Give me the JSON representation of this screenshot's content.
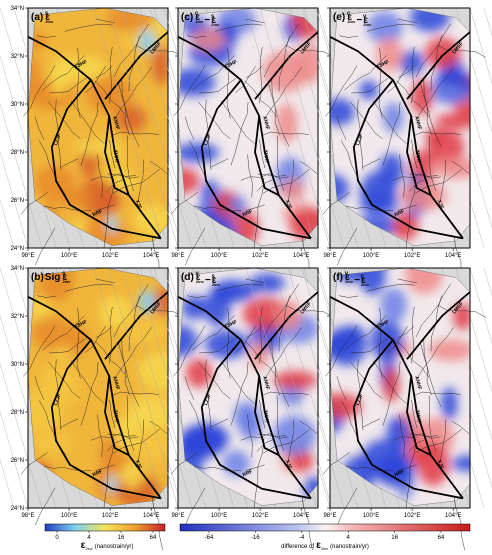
{
  "panels": [
    {
      "label": "(a)",
      "terms": [
        {
          "symbol": "ε",
          "sup": "s",
          "sub": "2inv"
        }
      ]
    },
    {
      "label": "(b)",
      "prefix": "Sig",
      "terms": [
        {
          "symbol": "ε",
          "sup": "s",
          "sub": "2inv"
        }
      ]
    },
    {
      "label": "(c)",
      "operator": "−",
      "terms": [
        {
          "symbol": "ε",
          "sup": "c",
          "sub": "2inv"
        },
        {
          "symbol": "ε",
          "sup": "s",
          "sub": "2inv"
        }
      ]
    },
    {
      "label": "(d)",
      "operator": "−",
      "terms": [
        {
          "symbol": "ε",
          "sup": "v",
          "sub": "2inv"
        },
        {
          "symbol": "ε",
          "sup": "s",
          "sub": "2inv"
        }
      ]
    },
    {
      "label": "(e)",
      "operator": "−",
      "terms": [
        {
          "symbol": "ε",
          "sup": "c",
          "sub": "2inv"
        },
        {
          "symbol": "ε",
          "sup": "v",
          "sub": "2inv"
        }
      ]
    },
    {
      "label": "(f)",
      "operator": "−",
      "terms": [
        {
          "symbol": "ε",
          "sup": "v",
          "sub": "2inv"
        },
        {
          "symbol": "ε",
          "sup": "c",
          "sub": "2inv"
        }
      ]
    }
  ],
  "lat_ticks": [
    {
      "value": 24,
      "label": "24°N"
    },
    {
      "value": 26,
      "label": "26°N"
    },
    {
      "value": 28,
      "label": "28°N"
    },
    {
      "value": 30,
      "label": "30°N"
    },
    {
      "value": 32,
      "label": "32°N"
    },
    {
      "value": 34,
      "label": "34°N"
    }
  ],
  "lon_ticks": [
    {
      "value": 98,
      "label": "98°E"
    },
    {
      "value": 100,
      "label": "100°E"
    },
    {
      "value": 102,
      "label": "102°E"
    },
    {
      "value": 104,
      "label": "104°E"
    }
  ],
  "faults": [
    "XSHF",
    "LMSF",
    "ANHF",
    "ZMHF",
    "LZJF",
    "XJF",
    "RRF"
  ],
  "colorbars": [
    {
      "ticks": [
        0,
        4,
        16,
        64
      ],
      "symbol": "ε",
      "sub": "2inv",
      "unit": "(nanostrain/yr)"
    },
    {
      "prefix": "difference of",
      "ticks": [
        -64,
        -16,
        -4,
        4,
        16,
        64
      ],
      "symbol": "ε",
      "sub": "2inv",
      "unit": "(nanostrain/yr)"
    }
  ]
}
